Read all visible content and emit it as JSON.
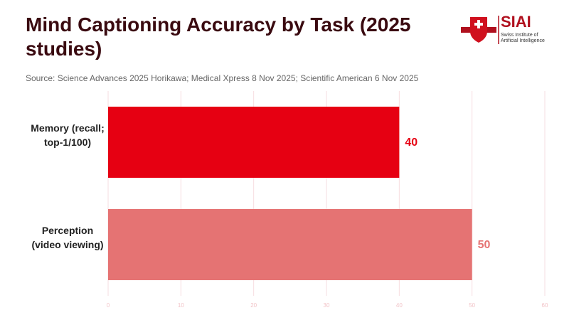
{
  "chart_data": {
    "type": "hbar",
    "title": "Mind Captioning Accuracy by Task (2025 studies)",
    "subtitle": "Source: Science Advances 2025 Horikawa; Medical Xpress 8 Nov 2025; Scientific American 6 Nov 2025",
    "categories": [
      "Memory (recall; top-1/100)",
      "Perception (video viewing)"
    ],
    "values": [
      40,
      50
    ],
    "colors": [
      "#e60012",
      "#e57373"
    ],
    "xlim": [
      0,
      60
    ],
    "xticks": [
      0,
      10,
      20,
      30,
      40,
      50,
      60
    ],
    "grid": true
  },
  "logo": {
    "name": "SIAI",
    "line1": "Swiss Institute of",
    "line2": "Artificial Intelligence"
  }
}
